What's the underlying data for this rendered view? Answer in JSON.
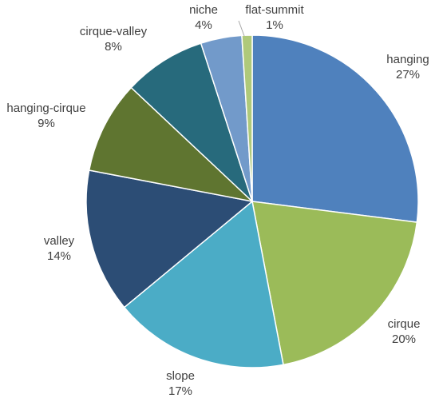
{
  "chart_data": {
    "type": "pie",
    "title": "",
    "legend": "none",
    "start_angle_deg": 0,
    "direction": "clockwise",
    "slices": [
      {
        "name": "hanging",
        "value": 27,
        "label": "27%",
        "color": "#4f81bd"
      },
      {
        "name": "cirque",
        "value": 20,
        "label": "20%",
        "color": "#9bbb59"
      },
      {
        "name": "slope",
        "value": 17,
        "label": "17%",
        "color": "#4bacc6"
      },
      {
        "name": "valley",
        "value": 14,
        "label": "14%",
        "color": "#2c4d75"
      },
      {
        "name": "hanging-cirque",
        "value": 9,
        "label": "9%",
        "color": "#5f7530"
      },
      {
        "name": "cirque-valley",
        "value": 8,
        "label": "8%",
        "color": "#276a7c"
      },
      {
        "name": "niche",
        "value": 4,
        "label": "4%",
        "color": "#729aca"
      },
      {
        "name": "flat-summit",
        "value": 1,
        "label": "1%",
        "color": "#afc97a"
      }
    ]
  }
}
